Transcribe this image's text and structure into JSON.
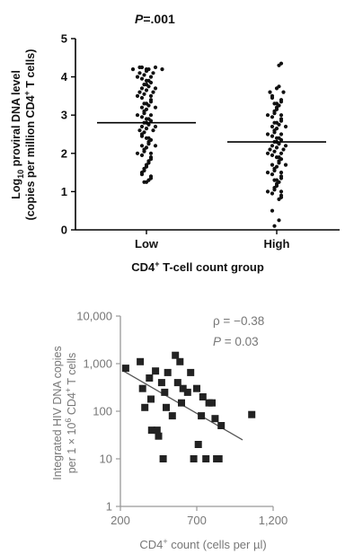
{
  "chart_data": [
    {
      "type": "scatter",
      "subtype": "dot-plot",
      "annotation": "P=.001",
      "annotation_prefix": "P",
      "annotation_value": "=.001",
      "xlabel_parts": [
        "CD4",
        "+",
        " T-cell count group"
      ],
      "ylabel_line1_parts": [
        "Log",
        "10",
        " proviral DNA level"
      ],
      "ylabel_line2_parts": [
        "(copies per million CD4",
        "+",
        " T cells)"
      ],
      "ylim": [
        0,
        5
      ],
      "yticks": [
        "0",
        "1",
        "2",
        "3",
        "4",
        "5"
      ],
      "categories": [
        "Low",
        "High"
      ],
      "medians": [
        2.8,
        2.3
      ],
      "series": [
        {
          "category": "Low",
          "values": [
            4.25,
            4.25,
            4.25,
            4.2,
            4.2,
            4.2,
            4.2,
            4.15,
            4.1,
            4.1,
            4.05,
            4.0,
            4.0,
            3.95,
            3.9,
            3.9,
            3.85,
            3.8,
            3.8,
            3.75,
            3.7,
            3.7,
            3.65,
            3.6,
            3.6,
            3.55,
            3.5,
            3.5,
            3.45,
            3.4,
            3.35,
            3.3,
            3.3,
            3.25,
            3.2,
            3.2,
            3.15,
            3.1,
            3.05,
            3.0,
            3.0,
            2.95,
            2.9,
            2.9,
            2.85,
            2.8,
            2.8,
            2.75,
            2.7,
            2.7,
            2.65,
            2.6,
            2.6,
            2.55,
            2.5,
            2.45,
            2.4,
            2.4,
            2.35,
            2.3,
            2.25,
            2.2,
            2.2,
            2.15,
            2.1,
            2.05,
            2.0,
            2.0,
            1.95,
            1.9,
            1.85,
            1.8,
            1.75,
            1.7,
            1.65,
            1.6,
            1.55,
            1.5,
            1.45,
            1.4,
            1.35,
            1.3,
            1.25,
            1.25
          ]
        },
        {
          "category": "High",
          "values": [
            4.35,
            4.3,
            3.75,
            3.7,
            3.6,
            3.6,
            3.5,
            3.45,
            3.4,
            3.35,
            3.3,
            3.3,
            3.25,
            3.2,
            3.15,
            3.1,
            3.05,
            3.0,
            3.0,
            2.95,
            2.9,
            2.85,
            2.8,
            2.8,
            2.75,
            2.7,
            2.7,
            2.65,
            2.6,
            2.55,
            2.5,
            2.5,
            2.45,
            2.4,
            2.4,
            2.35,
            2.3,
            2.3,
            2.25,
            2.2,
            2.2,
            2.15,
            2.1,
            2.1,
            2.05,
            2.0,
            2.0,
            1.95,
            1.9,
            1.9,
            1.85,
            1.8,
            1.75,
            1.7,
            1.7,
            1.65,
            1.6,
            1.55,
            1.5,
            1.5,
            1.45,
            1.4,
            1.35,
            1.3,
            1.3,
            1.25,
            1.2,
            1.15,
            1.1,
            1.05,
            1.0,
            1.0,
            0.95,
            0.9,
            0.85,
            0.8,
            0.5,
            0.25,
            0.1
          ]
        }
      ]
    },
    {
      "type": "scatter",
      "xlabel_parts": [
        "CD4",
        "+",
        " count (cells per µl)"
      ],
      "ylabel_line1": "Integrated HIV DNA copies",
      "ylabel_line2_parts": [
        "per 1 × 10",
        "6",
        " CD4",
        "+",
        " T cells"
      ],
      "annotation_rho": "ρ = −0.38",
      "annotation_p_prefix": "P",
      "annotation_p_value": " = 0.03",
      "xlim": [
        200,
        1200
      ],
      "xticks": [
        {
          "value": 200,
          "label": "200"
        },
        {
          "value": 700,
          "label": "700"
        },
        {
          "value": 1200,
          "label": "1,200"
        }
      ],
      "ylim": [
        1,
        10000
      ],
      "yscale": "log",
      "yticks": [
        {
          "value": 1,
          "label": "1"
        },
        {
          "value": 10,
          "label": "10"
        },
        {
          "value": 100,
          "label": "100"
        },
        {
          "value": 1000,
          "label": "1,000"
        },
        {
          "value": 10000,
          "label": "10,000"
        }
      ],
      "points": [
        {
          "x": 235,
          "y": 800
        },
        {
          "x": 330,
          "y": 1100
        },
        {
          "x": 345,
          "y": 300
        },
        {
          "x": 360,
          "y": 120
        },
        {
          "x": 390,
          "y": 500
        },
        {
          "x": 400,
          "y": 180
        },
        {
          "x": 405,
          "y": 40
        },
        {
          "x": 430,
          "y": 700
        },
        {
          "x": 440,
          "y": 40
        },
        {
          "x": 450,
          "y": 30
        },
        {
          "x": 470,
          "y": 400
        },
        {
          "x": 480,
          "y": 10
        },
        {
          "x": 490,
          "y": 250
        },
        {
          "x": 500,
          "y": 120
        },
        {
          "x": 510,
          "y": 650
        },
        {
          "x": 540,
          "y": 80
        },
        {
          "x": 560,
          "y": 1500
        },
        {
          "x": 575,
          "y": 400
        },
        {
          "x": 590,
          "y": 1100
        },
        {
          "x": 600,
          "y": 150
        },
        {
          "x": 610,
          "y": 300
        },
        {
          "x": 640,
          "y": 250
        },
        {
          "x": 660,
          "y": 650
        },
        {
          "x": 680,
          "y": 10
        },
        {
          "x": 700,
          "y": 300
        },
        {
          "x": 710,
          "y": 20
        },
        {
          "x": 730,
          "y": 80
        },
        {
          "x": 740,
          "y": 200
        },
        {
          "x": 760,
          "y": 10
        },
        {
          "x": 780,
          "y": 150
        },
        {
          "x": 800,
          "y": 150
        },
        {
          "x": 820,
          "y": 70
        },
        {
          "x": 830,
          "y": 10
        },
        {
          "x": 845,
          "y": 10
        },
        {
          "x": 860,
          "y": 50
        },
        {
          "x": 1060,
          "y": 85
        }
      ],
      "trend_line": [
        {
          "x": 220,
          "y": 700
        },
        {
          "x": 1000,
          "y": 25
        }
      ]
    }
  ]
}
